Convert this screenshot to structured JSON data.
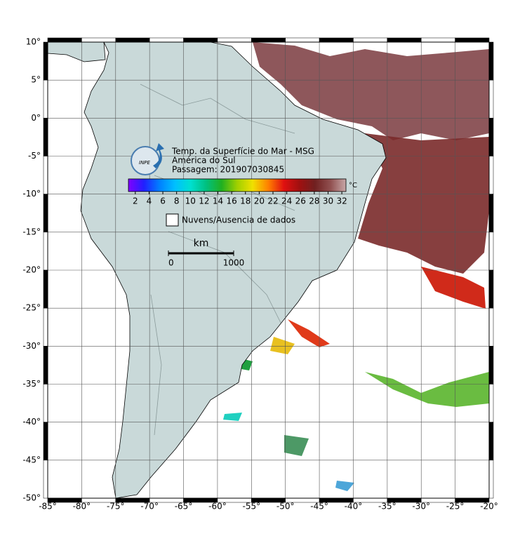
{
  "map": {
    "title": "Temp. da Superfície do Mar - MSG",
    "region": "América do Sul",
    "pass": "Passagem: 201907030845",
    "logo": "INPE",
    "lonlim": [
      -85,
      -20
    ],
    "latlim": [
      -50,
      10
    ],
    "lon_ticks": [
      {
        "value": -85,
        "label": "-85°"
      },
      {
        "value": -80,
        "label": "-80°"
      },
      {
        "value": -75,
        "label": "-75°"
      },
      {
        "value": -70,
        "label": "-70°"
      },
      {
        "value": -65,
        "label": "-65°"
      },
      {
        "value": -60,
        "label": "-60°"
      },
      {
        "value": -55,
        "label": "-55°"
      },
      {
        "value": -50,
        "label": "-50°"
      },
      {
        "value": -45,
        "label": "-45°"
      },
      {
        "value": -40,
        "label": "-40°"
      },
      {
        "value": -35,
        "label": "-35°"
      },
      {
        "value": -30,
        "label": "-30°"
      },
      {
        "value": -25,
        "label": "-25°"
      },
      {
        "value": -20,
        "label": "-20°"
      }
    ],
    "lat_ticks": [
      {
        "value": 10,
        "label": "10°"
      },
      {
        "value": 5,
        "label": "5°"
      },
      {
        "value": 0,
        "label": "0°"
      },
      {
        "value": -5,
        "label": "-5°"
      },
      {
        "value": -10,
        "label": "-10°"
      },
      {
        "value": -15,
        "label": "-15°"
      },
      {
        "value": -20,
        "label": "-20°"
      },
      {
        "value": -25,
        "label": "-25°"
      },
      {
        "value": -30,
        "label": "-30°"
      },
      {
        "value": -35,
        "label": "-35°"
      },
      {
        "value": -40,
        "label": "-40°"
      },
      {
        "value": -45,
        "label": "-45°"
      },
      {
        "value": -50,
        "label": "-50°"
      }
    ],
    "colorbar": {
      "range": [
        1,
        32.6
      ],
      "ticks": [
        2,
        4,
        6,
        8,
        10,
        12,
        14,
        16,
        18,
        20,
        22,
        24,
        26,
        28,
        30,
        32
      ],
      "unit": "°C"
    },
    "legend": "Nuvens/Ausencia de dados",
    "scale": {
      "unit": "km",
      "range": [
        0,
        1000
      ],
      "ticks": [
        0,
        1000
      ]
    }
  }
}
